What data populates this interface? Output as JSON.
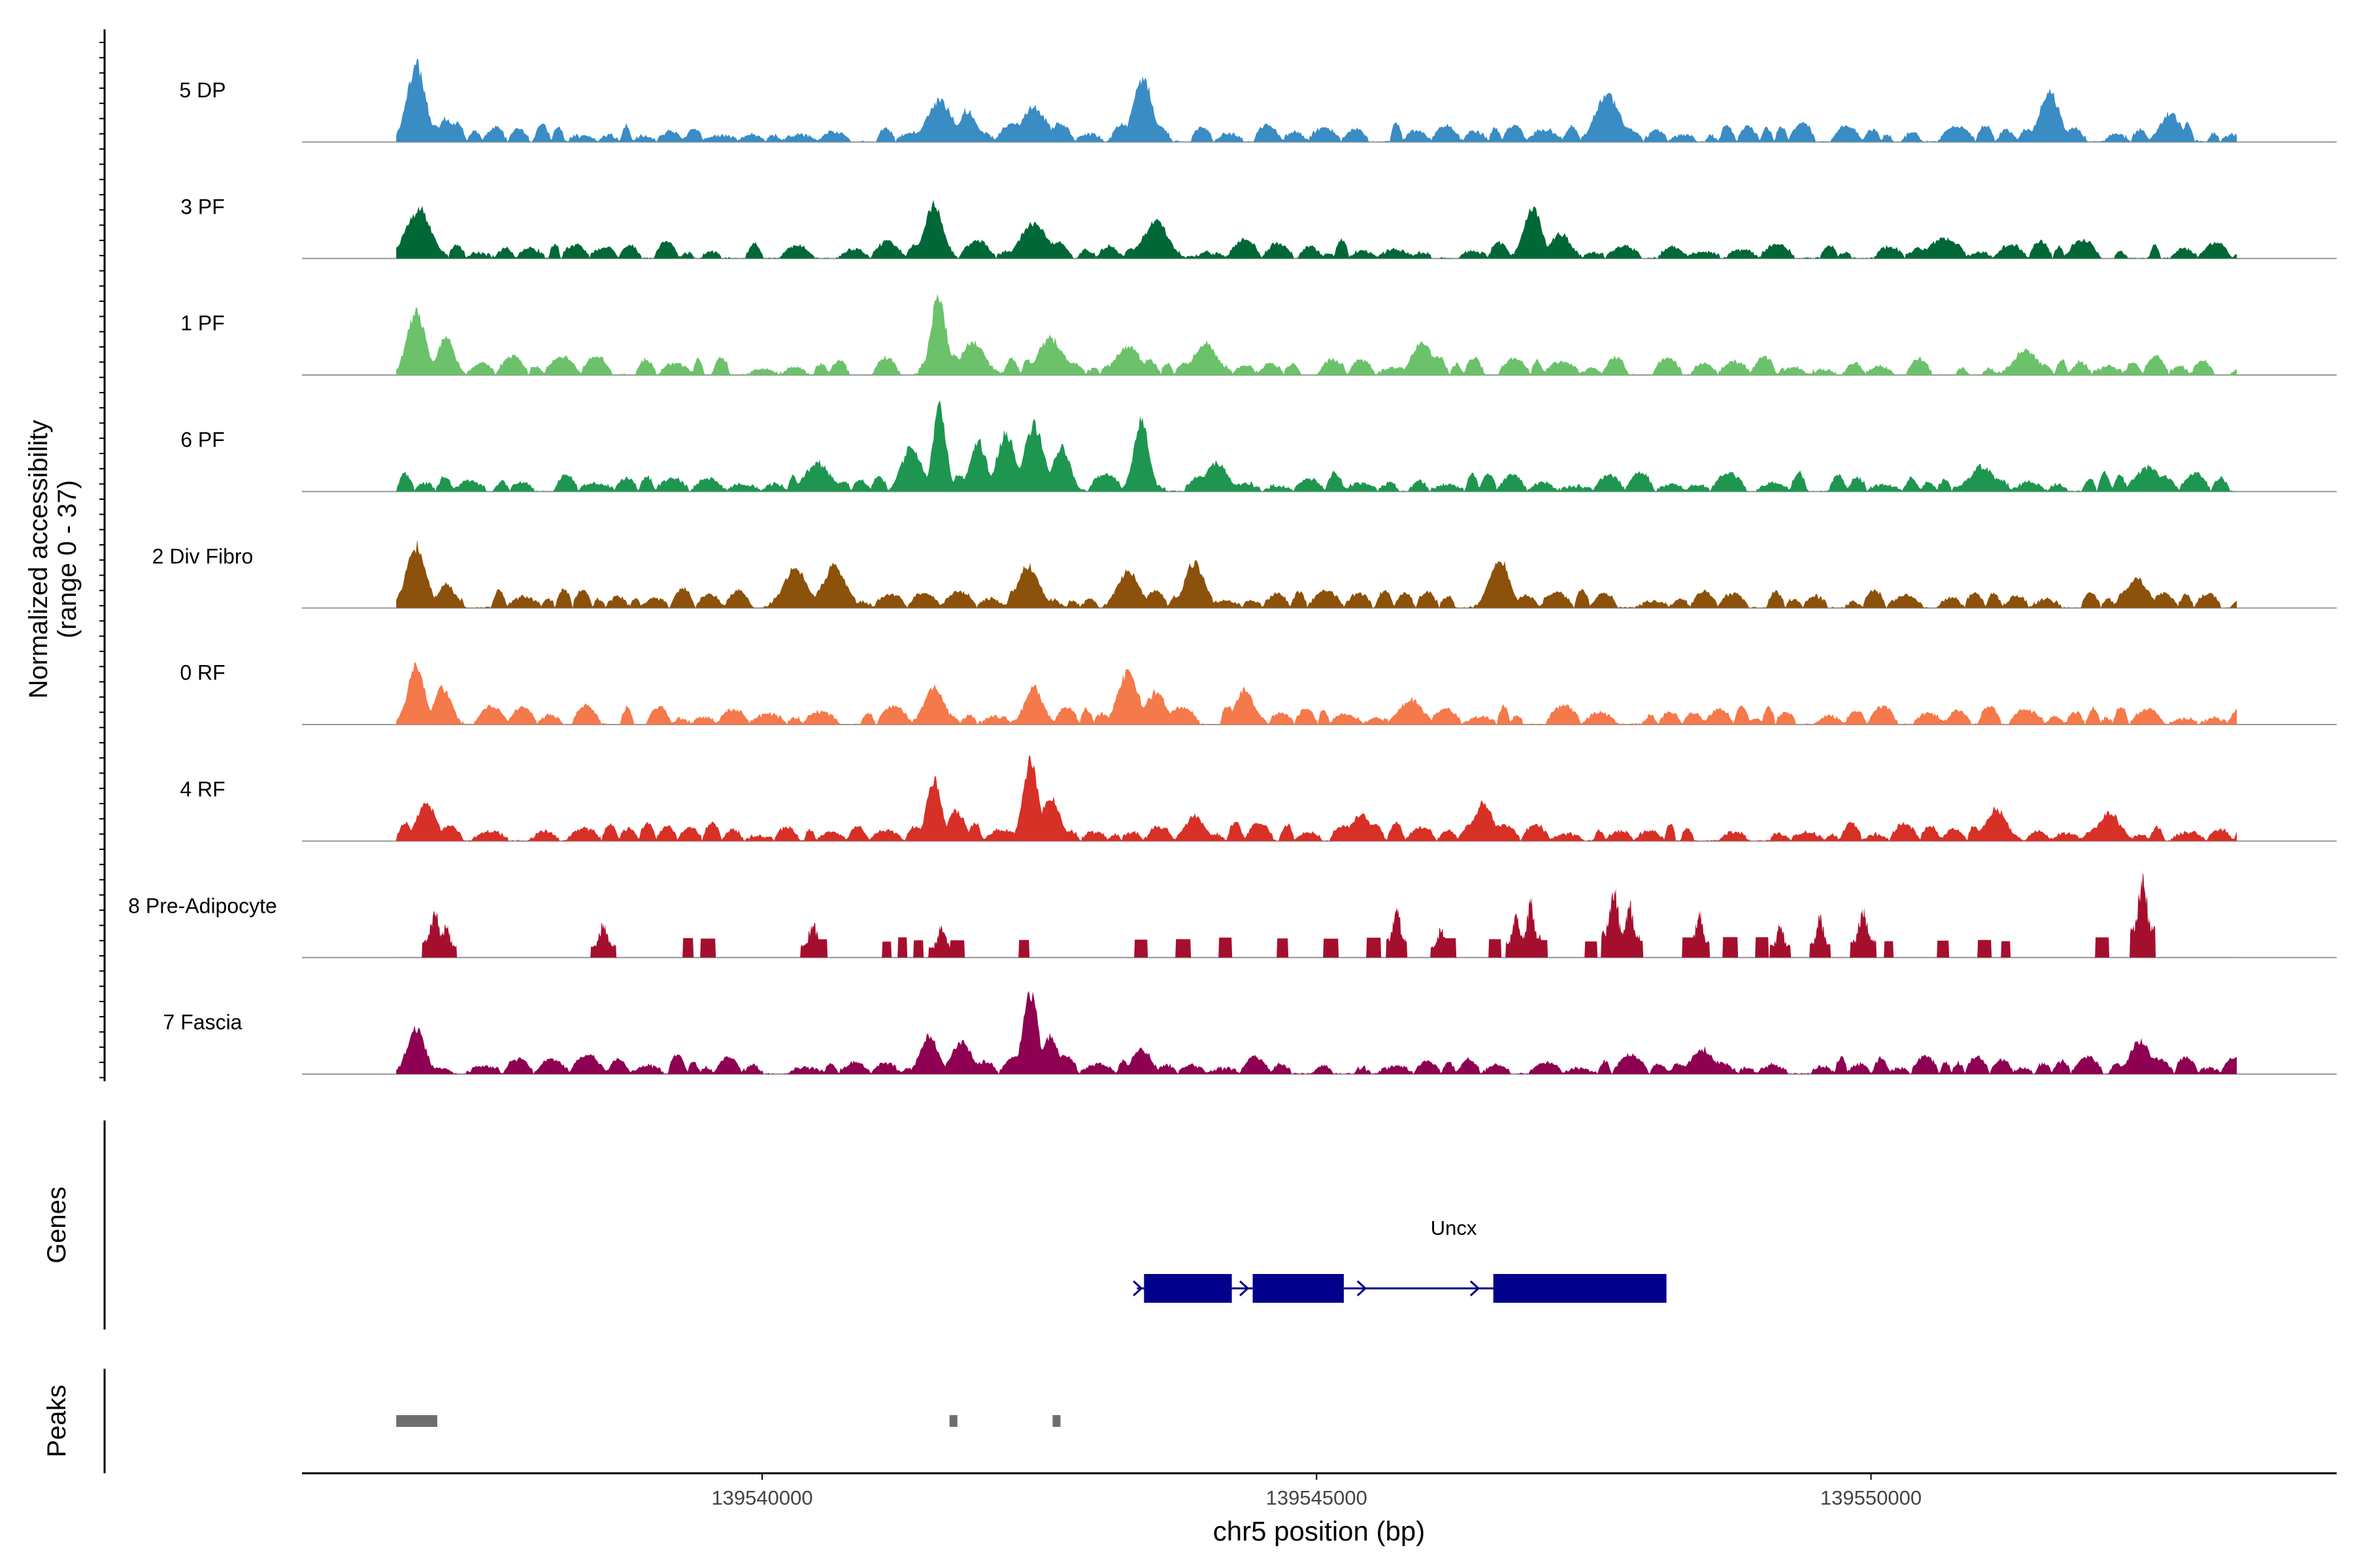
{
  "chart_data": {
    "type": "area",
    "title": "",
    "ylabel_line1": "Normalized accessibility",
    "ylabel_line2": "(range 0 - 37)",
    "ylim": [
      0,
      37
    ],
    "xlabel": "chr5 position (bp)",
    "xlim": [
      139535850,
      139554200
    ],
    "xticks": [
      139540000,
      139545000,
      139550000
    ],
    "xtick_labels": [
      "139540000",
      "139545000",
      "139550000"
    ],
    "region": {
      "start": 139536700,
      "end": 139553300
    },
    "tracks": [
      {
        "name": "5 DP",
        "color": "#3A8CC4",
        "style": "smooth",
        "seed": 11,
        "peaks": [
          [
            139536880,
            0.95,
            110
          ],
          [
            139537150,
            0.28,
            90
          ],
          [
            139541600,
            0.5,
            150
          ],
          [
            139541850,
            0.38,
            110
          ],
          [
            139542450,
            0.42,
            150
          ],
          [
            139543430,
            0.8,
            110
          ],
          [
            139547620,
            0.6,
            140
          ],
          [
            139551610,
            0.6,
            120
          ],
          [
            139552700,
            0.35,
            120
          ]
        ]
      },
      {
        "name": "3 PF",
        "color": "#006837",
        "style": "smooth",
        "seed": 23,
        "peaks": [
          [
            139536900,
            0.6,
            150
          ],
          [
            139541550,
            0.65,
            110
          ],
          [
            139542450,
            0.45,
            150
          ],
          [
            139543550,
            0.45,
            150
          ],
          [
            139546950,
            0.6,
            110
          ],
          [
            139547200,
            0.3,
            120
          ],
          [
            139550640,
            0.25,
            150
          ]
        ]
      },
      {
        "name": "1 PF",
        "color": "#6BC26A",
        "style": "smooth",
        "seed": 37,
        "peaks": [
          [
            139536880,
            0.78,
            110
          ],
          [
            139537150,
            0.45,
            100
          ],
          [
            139541590,
            0.95,
            90
          ],
          [
            139541900,
            0.4,
            140
          ],
          [
            139542600,
            0.45,
            150
          ],
          [
            139543300,
            0.35,
            150
          ],
          [
            139544000,
            0.38,
            140
          ],
          [
            139545950,
            0.4,
            120
          ],
          [
            139551400,
            0.3,
            150
          ]
        ]
      },
      {
        "name": "6 PF",
        "color": "#1E9650",
        "style": "smooth",
        "seed": 41,
        "peaks": [
          [
            139541600,
            1.0,
            80
          ],
          [
            139541350,
            0.55,
            120
          ],
          [
            139541950,
            0.6,
            100
          ],
          [
            139542200,
            0.7,
            110
          ],
          [
            139542450,
            0.8,
            120
          ],
          [
            139542700,
            0.55,
            100
          ],
          [
            139543420,
            0.85,
            90
          ],
          [
            139540500,
            0.35,
            150
          ],
          [
            139544100,
            0.35,
            130
          ],
          [
            139551000,
            0.3,
            150
          ],
          [
            139552500,
            0.3,
            150
          ]
        ]
      },
      {
        "name": "2 Div Fibro",
        "color": "#8C510A",
        "style": "smooth",
        "seed": 53,
        "peaks": [
          [
            139536880,
            0.75,
            120
          ],
          [
            139537150,
            0.3,
            100
          ],
          [
            139540300,
            0.5,
            140
          ],
          [
            139540650,
            0.5,
            140
          ],
          [
            139542400,
            0.5,
            130
          ],
          [
            139543300,
            0.45,
            130
          ],
          [
            139543900,
            0.55,
            120
          ],
          [
            139546650,
            0.6,
            120
          ],
          [
            139552400,
            0.35,
            130
          ]
        ]
      },
      {
        "name": "0 RF",
        "color": "#F4794B",
        "style": "smooth",
        "seed": 67,
        "peaks": [
          [
            139536880,
            0.72,
            100
          ],
          [
            139537120,
            0.45,
            100
          ],
          [
            139541550,
            0.45,
            120
          ],
          [
            139542450,
            0.45,
            110
          ],
          [
            139543300,
            0.65,
            120
          ],
          [
            139543550,
            0.4,
            120
          ],
          [
            139544350,
            0.42,
            110
          ],
          [
            139545850,
            0.3,
            140
          ]
        ]
      },
      {
        "name": "4 RF",
        "color": "#D73027",
        "style": "smooth",
        "seed": 79,
        "peaks": [
          [
            139536970,
            0.45,
            120
          ],
          [
            139541550,
            0.75,
            90
          ],
          [
            139541750,
            0.35,
            110
          ],
          [
            139542420,
            1.0,
            90
          ],
          [
            139542600,
            0.55,
            110
          ],
          [
            139543900,
            0.3,
            120
          ],
          [
            139545400,
            0.32,
            120
          ],
          [
            139546500,
            0.45,
            120
          ],
          [
            139551130,
            0.38,
            130
          ],
          [
            139552150,
            0.35,
            120
          ]
        ]
      },
      {
        "name": "8 Pre-Adipocyte",
        "color": "#A50F2E",
        "style": "blocky",
        "seed": 83,
        "peaks": [
          [
            139537050,
            0.7,
            50
          ],
          [
            139537150,
            0.5,
            40
          ],
          [
            139538570,
            0.5,
            50
          ],
          [
            139540460,
            0.5,
            50
          ],
          [
            139541620,
            0.45,
            50
          ],
          [
            139545720,
            0.75,
            40
          ],
          [
            139546120,
            0.45,
            40
          ],
          [
            139546800,
            0.65,
            40
          ],
          [
            139546930,
            0.85,
            40
          ],
          [
            139547680,
            1.0,
            50
          ],
          [
            139547820,
            0.85,
            40
          ],
          [
            139548450,
            0.65,
            40
          ],
          [
            139549180,
            0.5,
            40
          ],
          [
            139549540,
            0.6,
            40
          ],
          [
            139549930,
            0.7,
            50
          ],
          [
            139552450,
            1.2,
            50
          ]
        ]
      },
      {
        "name": "7 Fascia",
        "color": "#8E0152",
        "style": "smooth",
        "seed": 97,
        "peaks": [
          [
            139536880,
            0.55,
            110
          ],
          [
            139541510,
            0.45,
            110
          ],
          [
            139541800,
            0.4,
            120
          ],
          [
            139542420,
            1.0,
            90
          ],
          [
            139542600,
            0.45,
            100
          ],
          [
            139543420,
            0.3,
            120
          ],
          [
            139548480,
            0.3,
            140
          ],
          [
            139552430,
            0.4,
            120
          ]
        ]
      }
    ],
    "genes_label": "Genes",
    "gene": {
      "name": "Uncx",
      "strand": "+",
      "start": 139543380,
      "end": 139548150,
      "exons": [
        [
          139543450,
          139544230
        ],
        [
          139544430,
          139545240
        ],
        [
          139546600,
          139548150
        ]
      ],
      "arrows": [
        139543420,
        139544380,
        139545440,
        139546460
      ],
      "color": "#00008B"
    },
    "peaks_label": "Peaks",
    "peak_regions": [
      [
        139536700,
        139537070
      ],
      [
        139541690,
        139541750
      ],
      [
        139542620,
        139542680
      ]
    ],
    "peak_color": "#6E6E6E"
  }
}
